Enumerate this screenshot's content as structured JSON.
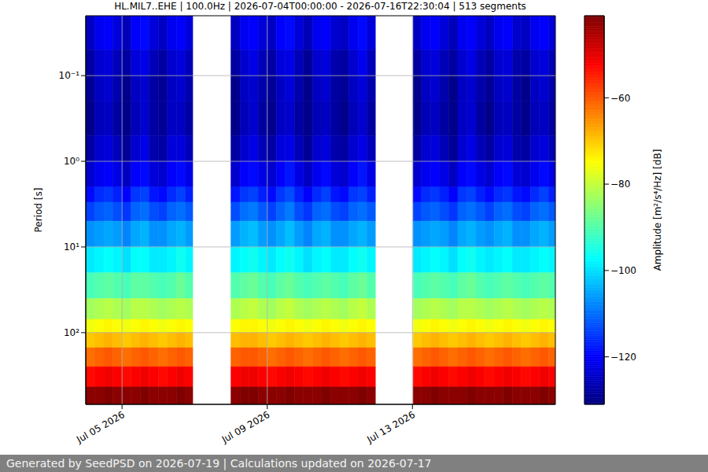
{
  "chart_data": {
    "type": "heatmap",
    "title": "HL.MIL7..EHE | 100.0Hz | 2026-07-04T00:00:00 - 2026-07-16T22:30:04 | 513 segments",
    "y_label": "Period [s]",
    "footer": "Generated by SeedPSD on 2026-07-19 | Calculations updated on 2026-07-17",
    "log": "y",
    "grid": true,
    "xlim": [
      "2026-07-04T00:00:00",
      "2026-07-16T22:30:04"
    ],
    "xticks": [
      {
        "value": "2026-07-05T00:00:00",
        "label": "Jul 05 2026"
      },
      {
        "value": "2026-07-09T00:00:00",
        "label": "Jul 09 2026"
      },
      {
        "value": "2026-07-13T00:00:00",
        "label": "Jul 13 2026"
      }
    ],
    "ylim": [
      0.02,
      687
    ],
    "yticks": [
      {
        "value": 0.1,
        "label": "10⁻¹"
      },
      {
        "value": 1,
        "label": "10⁰"
      },
      {
        "value": 10,
        "label": "10¹"
      },
      {
        "value": 100,
        "label": "10²"
      }
    ],
    "x_edges": [
      "2026-07-04T00:00:00",
      "2026-07-04T06:00:00",
      "2026-07-04T12:00:00",
      "2026-07-04T18:00:00",
      "2026-07-05T00:00:00",
      "2026-07-05T06:00:00",
      "2026-07-05T12:00:00",
      "2026-07-05T18:00:00",
      "2026-07-06T00:00:00",
      "2026-07-06T06:00:00",
      "2026-07-06T12:00:00",
      "2026-07-06T18:00:00",
      "2026-07-06T22:45:00",
      "2026-07-08T00:00:00",
      "2026-07-08T06:00:00",
      "2026-07-08T12:00:00",
      "2026-07-08T18:00:00",
      "2026-07-09T00:00:00",
      "2026-07-09T06:00:00",
      "2026-07-09T12:00:00",
      "2026-07-09T18:00:00",
      "2026-07-10T00:00:00",
      "2026-07-10T06:00:00",
      "2026-07-10T12:00:00",
      "2026-07-10T18:00:00",
      "2026-07-11T00:00:00",
      "2026-07-11T06:00:00",
      "2026-07-11T12:00:00",
      "2026-07-11T18:00:00",
      "2026-07-11T23:30:00",
      "2026-07-13T00:30:00",
      "2026-07-13T06:00:00",
      "2026-07-13T12:00:00",
      "2026-07-13T18:00:00",
      "2026-07-14T00:00:00",
      "2026-07-14T06:00:00",
      "2026-07-14T12:00:00",
      "2026-07-14T18:00:00",
      "2026-07-15T00:00:00",
      "2026-07-15T06:00:00",
      "2026-07-15T12:00:00",
      "2026-07-15T18:00:00",
      "2026-07-16T00:00:00",
      "2026-07-16T06:00:00",
      "2026-07-16T12:00:00",
      "2026-07-16T18:00:00",
      "2026-07-16T22:30:04"
    ],
    "y_edges": [
      0.02,
      0.05,
      0.1,
      0.2,
      0.5,
      1,
      2,
      3,
      5,
      10,
      20,
      40,
      70,
      100,
      150,
      250,
      431,
      687
    ],
    "cells": [
      [
        -125,
        -128,
        -129,
        -130,
        -128,
        -124,
        -119,
        -114,
        -107,
        -99,
        -91,
        -83,
        -76,
        -70,
        -62,
        -53,
        -42
      ],
      [
        -121,
        -124,
        -125,
        -126,
        -124,
        -121,
        -116,
        -112,
        -106,
        -98,
        -90,
        -82,
        -75,
        -69,
        -61,
        -52,
        -42
      ],
      [
        -120,
        -123,
        -124,
        -125,
        -123,
        -120,
        -115,
        -111,
        -105,
        -97,
        -89,
        -81,
        -74,
        -68,
        -60,
        -51,
        -41
      ],
      [
        -123,
        -126,
        -127,
        -128,
        -126,
        -122,
        -117,
        -113,
        -106,
        -98,
        -90,
        -82,
        -75,
        -69,
        -61,
        -52,
        -42
      ],
      [
        -126,
        -128,
        -130,
        -130,
        -129,
        -125,
        -120,
        -115,
        -108,
        -100,
        -91,
        -83,
        -76,
        -70,
        -62,
        -53,
        -42
      ],
      [
        -120,
        -123,
        -125,
        -126,
        -124,
        -120,
        -115,
        -111,
        -105,
        -97,
        -89,
        -81,
        -75,
        -69,
        -61,
        -52,
        -42
      ],
      [
        -119,
        -122,
        -124,
        -124,
        -122,
        -119,
        -114,
        -110,
        -104,
        -97,
        -89,
        -81,
        -74,
        -68,
        -60,
        -51,
        -41
      ],
      [
        -123,
        -126,
        -128,
        -128,
        -127,
        -123,
        -118,
        -113,
        -107,
        -99,
        -90,
        -82,
        -75,
        -69,
        -61,
        -52,
        -42
      ],
      [
        -125,
        -128,
        -129,
        -129,
        -128,
        -124,
        -119,
        -114,
        -107,
        -99,
        -91,
        -83,
        -76,
        -70,
        -62,
        -53,
        -42
      ],
      [
        -121,
        -124,
        -125,
        -125,
        -123,
        -120,
        -116,
        -111,
        -105,
        -98,
        -90,
        -82,
        -75,
        -69,
        -61,
        -52,
        -42
      ],
      [
        -120,
        -123,
        -124,
        -125,
        -123,
        -119,
        -114,
        -110,
        -104,
        -96,
        -88,
        -81,
        -74,
        -68,
        -60,
        -51,
        -41
      ],
      [
        -123,
        -126,
        -127,
        -128,
        -126,
        -122,
        -117,
        -112,
        -106,
        -98,
        -90,
        -82,
        -75,
        -69,
        -61,
        -52,
        -42
      ],
      null,
      [
        -125,
        -128,
        -130,
        -130,
        -128,
        -124,
        -118,
        -113,
        -106,
        -98,
        -90,
        -82,
        -75,
        -69,
        -61,
        -52,
        -42
      ],
      [
        -121,
        -124,
        -125,
        -126,
        -124,
        -120,
        -115,
        -110,
        -104,
        -97,
        -89,
        -81,
        -74,
        -68,
        -60,
        -51,
        -41
      ],
      [
        -120,
        -122,
        -124,
        -124,
        -122,
        -119,
        -114,
        -109,
        -103,
        -96,
        -88,
        -80,
        -74,
        -68,
        -60,
        -51,
        -41
      ],
      [
        -123,
        -126,
        -127,
        -128,
        -126,
        -122,
        -117,
        -112,
        -106,
        -98,
        -90,
        -82,
        -75,
        -69,
        -61,
        -52,
        -42
      ],
      [
        -125,
        -128,
        -129,
        -130,
        -128,
        -124,
        -119,
        -114,
        -107,
        -99,
        -91,
        -83,
        -76,
        -70,
        -62,
        -53,
        -42
      ],
      [
        -120,
        -123,
        -125,
        -125,
        -123,
        -120,
        -115,
        -111,
        -105,
        -97,
        -89,
        -81,
        -75,
        -69,
        -61,
        -52,
        -42
      ],
      [
        -119,
        -122,
        -123,
        -124,
        -122,
        -118,
        -113,
        -109,
        -103,
        -96,
        -88,
        -80,
        -74,
        -68,
        -60,
        -51,
        -41
      ],
      [
        -123,
        -126,
        -127,
        -128,
        -126,
        -122,
        -117,
        -113,
        -106,
        -98,
        -90,
        -82,
        -75,
        -69,
        -61,
        -52,
        -42
      ],
      [
        -126,
        -129,
        -130,
        -130,
        -129,
        -125,
        -120,
        -115,
        -108,
        -100,
        -91,
        -83,
        -76,
        -70,
        -62,
        -53,
        -42
      ],
      [
        -121,
        -124,
        -125,
        -126,
        -124,
        -121,
        -116,
        -111,
        -105,
        -98,
        -90,
        -82,
        -75,
        -69,
        -61,
        -52,
        -42
      ],
      [
        -120,
        -123,
        -124,
        -125,
        -123,
        -119,
        -114,
        -110,
        -104,
        -97,
        -89,
        -81,
        -74,
        -68,
        -60,
        -51,
        -41
      ],
      [
        -124,
        -127,
        -128,
        -128,
        -127,
        -123,
        -118,
        -113,
        -107,
        -99,
        -90,
        -82,
        -75,
        -69,
        -61,
        -52,
        -42
      ],
      [
        -125,
        -128,
        -129,
        -130,
        -128,
        -124,
        -119,
        -114,
        -107,
        -99,
        -91,
        -83,
        -76,
        -70,
        -62,
        -53,
        -42
      ],
      [
        -121,
        -124,
        -125,
        -126,
        -124,
        -120,
        -115,
        -111,
        -105,
        -97,
        -89,
        -81,
        -75,
        -69,
        -61,
        -52,
        -42
      ],
      [
        -119,
        -121,
        -123,
        -124,
        -122,
        -118,
        -114,
        -110,
        -104,
        -96,
        -88,
        -80,
        -74,
        -68,
        -60,
        -51,
        -41
      ],
      [
        -123,
        -126,
        -127,
        -128,
        -126,
        -122,
        -117,
        -112,
        -106,
        -98,
        -90,
        -82,
        -75,
        -69,
        -61,
        -52,
        -42
      ],
      null,
      [
        -125,
        -128,
        -130,
        -130,
        -128,
        -124,
        -119,
        -114,
        -107,
        -99,
        -91,
        -83,
        -76,
        -70,
        -62,
        -53,
        -42
      ],
      [
        -121,
        -124,
        -125,
        -126,
        -124,
        -121,
        -116,
        -112,
        -106,
        -98,
        -90,
        -82,
        -75,
        -69,
        -61,
        -52,
        -42
      ],
      [
        -120,
        -123,
        -124,
        -125,
        -123,
        -120,
        -115,
        -111,
        -105,
        -97,
        -89,
        -81,
        -74,
        -68,
        -60,
        -51,
        -41
      ],
      [
        -123,
        -126,
        -127,
        -128,
        -126,
        -122,
        -117,
        -113,
        -106,
        -98,
        -90,
        -82,
        -75,
        -69,
        -61,
        -52,
        -42
      ],
      [
        -126,
        -128,
        -130,
        -130,
        -129,
        -125,
        -120,
        -115,
        -108,
        -100,
        -91,
        -83,
        -76,
        -70,
        -62,
        -53,
        -42
      ],
      [
        -121,
        -124,
        -125,
        -125,
        -124,
        -120,
        -115,
        -111,
        -105,
        -97,
        -89,
        -81,
        -75,
        -69,
        -61,
        -52,
        -42
      ],
      [
        -120,
        -122,
        -124,
        -124,
        -122,
        -119,
        -114,
        -110,
        -104,
        -96,
        -88,
        -81,
        -74,
        -68,
        -60,
        -51,
        -41
      ],
      [
        -123,
        -126,
        -127,
        -128,
        -126,
        -122,
        -117,
        -112,
        -106,
        -98,
        -90,
        -82,
        -75,
        -69,
        -61,
        -52,
        -42
      ],
      [
        -125,
        -128,
        -129,
        -130,
        -128,
        -124,
        -119,
        -114,
        -107,
        -99,
        -91,
        -83,
        -76,
        -70,
        -62,
        -53,
        -42
      ],
      [
        -121,
        -124,
        -125,
        -126,
        -124,
        -120,
        -116,
        -111,
        -105,
        -98,
        -90,
        -82,
        -75,
        -69,
        -61,
        -52,
        -42
      ],
      [
        -120,
        -123,
        -124,
        -125,
        -123,
        -119,
        -115,
        -110,
        -104,
        -97,
        -89,
        -81,
        -74,
        -68,
        -60,
        -51,
        -41
      ],
      [
        -124,
        -127,
        -128,
        -128,
        -127,
        -123,
        -118,
        -113,
        -107,
        -99,
        -90,
        -82,
        -75,
        -69,
        -61,
        -52,
        -42
      ],
      [
        -125,
        -128,
        -130,
        -130,
        -128,
        -124,
        -119,
        -114,
        -107,
        -99,
        -91,
        -83,
        -76,
        -70,
        -62,
        -53,
        -42
      ],
      [
        -121,
        -124,
        -125,
        -126,
        -124,
        -121,
        -116,
        -111,
        -105,
        -98,
        -90,
        -82,
        -75,
        -69,
        -61,
        -52,
        -42
      ],
      [
        -120,
        -123,
        -124,
        -125,
        -123,
        -119,
        -114,
        -110,
        -104,
        -97,
        -89,
        -81,
        -74,
        -68,
        -60,
        -51,
        -41
      ],
      [
        -123,
        -126,
        -127,
        -128,
        -126,
        -122,
        -117,
        -112,
        -106,
        -98,
        -90,
        -82,
        -75,
        -69,
        -61,
        -52,
        -42
      ]
    ],
    "colorbar": {
      "label": "Amplitude [m²/s⁴/Hz] [dB]",
      "range": [
        -131,
        -41
      ],
      "ticks": [
        {
          "value": -60,
          "label": "−60"
        },
        {
          "value": -80,
          "label": "−80"
        },
        {
          "value": -100,
          "label": "−100"
        },
        {
          "value": -120,
          "label": "−120"
        }
      ]
    }
  }
}
